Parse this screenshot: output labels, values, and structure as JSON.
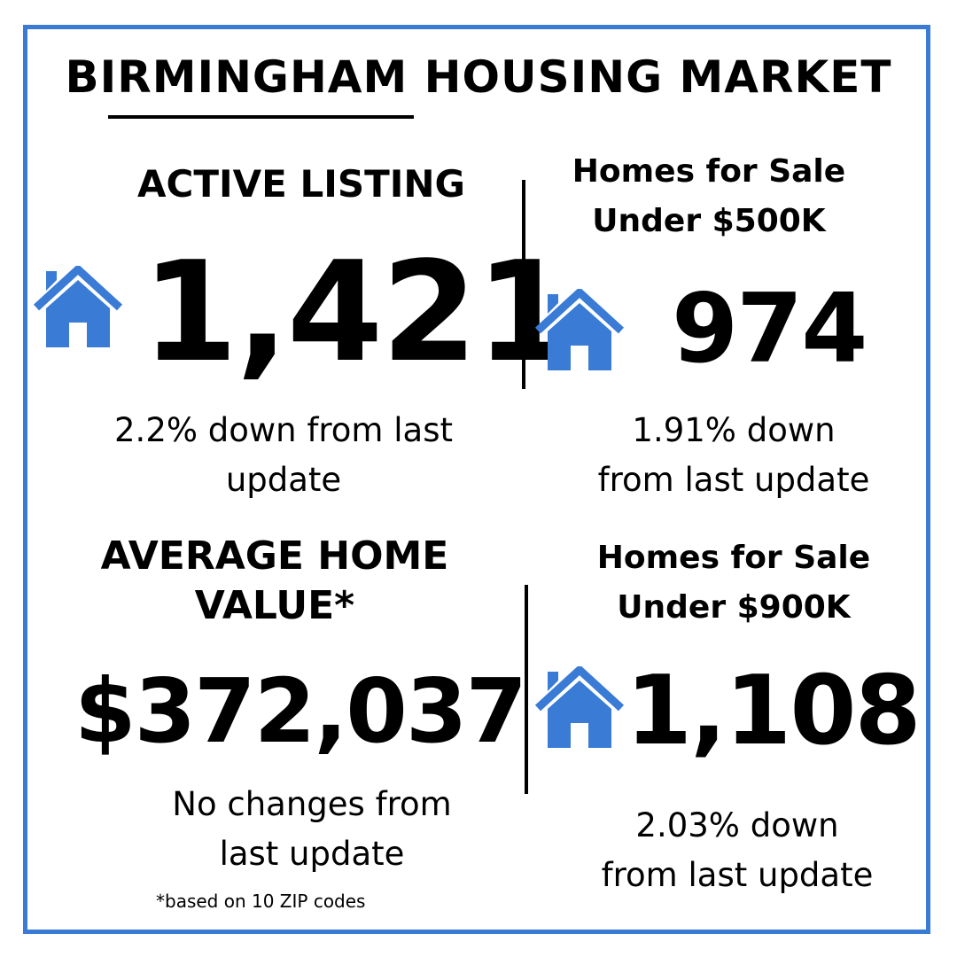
{
  "title": "BIRMINGHAM HOUSING MARKET",
  "colors": {
    "accent": "#3a7bd5",
    "text": "#000000",
    "background": "#ffffff"
  },
  "active_listing": {
    "label": "ACTIVE LISTING",
    "icon": "house-icon",
    "value": "1,421",
    "note_line1": "2.2% down from last",
    "note_line2": "update"
  },
  "under_500k": {
    "label_line1": "Homes for Sale",
    "label_line2": "Under $500K",
    "icon": "house-icon",
    "value": "974",
    "note_line1": "1.91% down",
    "note_line2": "from last update"
  },
  "average_value": {
    "label_line1": "AVERAGE HOME",
    "label_line2": "VALUE*",
    "value": "$372,037",
    "note_line1": "No changes from",
    "note_line2": "last update",
    "footnote": "*based on 10 ZIP codes"
  },
  "under_900k": {
    "label_line1": "Homes for Sale",
    "label_line2": "Under $900K",
    "icon": "house-icon",
    "value": "1,108",
    "note_line1": "2.03% down",
    "note_line2": "from last update"
  }
}
